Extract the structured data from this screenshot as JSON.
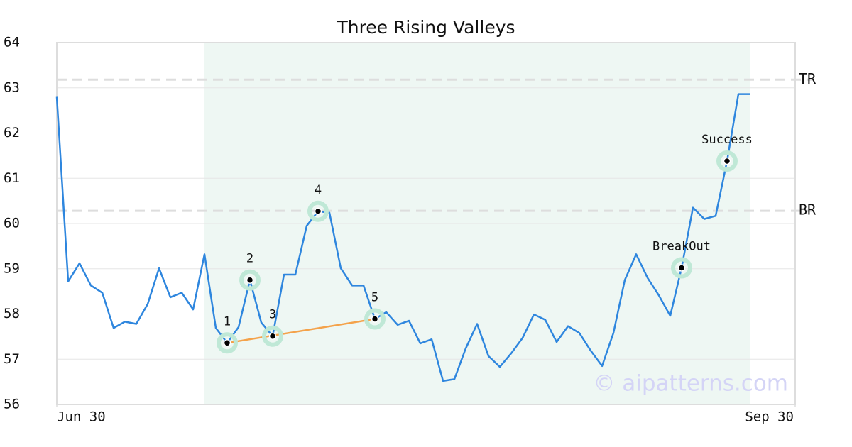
{
  "chart_data": {
    "type": "line",
    "title": "Three Rising Valleys",
    "color": "#2e86de",
    "x": [
      0,
      1,
      2,
      3,
      4,
      5,
      6,
      7,
      8,
      9,
      10,
      11,
      12,
      13,
      14,
      15,
      16,
      17,
      18,
      19,
      20,
      21,
      22,
      23,
      24,
      25,
      26,
      27,
      28,
      29,
      30,
      31,
      32,
      33,
      34,
      35,
      36,
      37,
      38,
      39,
      40,
      41,
      42,
      43,
      44,
      45,
      46,
      47,
      48,
      49,
      50,
      51,
      52,
      53,
      54,
      55,
      56,
      57,
      58,
      59,
      60,
      61
    ],
    "values": [
      62.8,
      58.72,
      59.12,
      58.63,
      58.47,
      57.69,
      57.83,
      57.78,
      58.22,
      59.01,
      58.37,
      58.47,
      58.1,
      59.32,
      57.69,
      57.36,
      57.71,
      58.75,
      57.81,
      57.51,
      58.87,
      58.87,
      59.95,
      60.27,
      60.24,
      59.01,
      58.63,
      58.63,
      57.89,
      58.04,
      57.76,
      57.85,
      57.35,
      57.44,
      56.52,
      56.56,
      57.24,
      57.78,
      57.07,
      56.83,
      57.13,
      57.47,
      57.99,
      57.87,
      57.38,
      57.73,
      57.58,
      57.19,
      56.85,
      57.58,
      58.75,
      59.32,
      58.8,
      58.41,
      57.96,
      59.02,
      60.35,
      60.1,
      60.17,
      61.38,
      62.86,
      62.86
    ],
    "xlim": [
      0,
      65
    ],
    "xticks": [
      {
        "value": 0,
        "label": "Jun 30"
      },
      {
        "value": 65,
        "label": "Sep 30"
      }
    ],
    "ylim": [
      56,
      64
    ],
    "yticks": [
      56,
      57,
      58,
      59,
      60,
      61,
      62,
      63,
      64
    ],
    "grid": true,
    "highlight_range": [
      13,
      61
    ],
    "levels": [
      {
        "label": "TR",
        "value": 63.18
      },
      {
        "label": "BR",
        "value": 60.28
      }
    ],
    "markers": [
      {
        "label": "1",
        "x": 15,
        "value": 57.36
      },
      {
        "label": "2",
        "x": 17,
        "value": 58.75
      },
      {
        "label": "3",
        "x": 19,
        "value": 57.51
      },
      {
        "label": "4",
        "x": 23,
        "value": 60.27
      },
      {
        "label": "5",
        "x": 28,
        "value": 57.89
      },
      {
        "label": "BreakOut",
        "x": 55,
        "value": 59.02
      },
      {
        "label": "Success",
        "x": 59,
        "value": 61.38
      }
    ],
    "trend_line": {
      "x": [
        15,
        28
      ],
      "values": [
        57.36,
        57.89
      ],
      "color": "#f4a24a"
    },
    "watermark": "© aipatterns.com"
  }
}
